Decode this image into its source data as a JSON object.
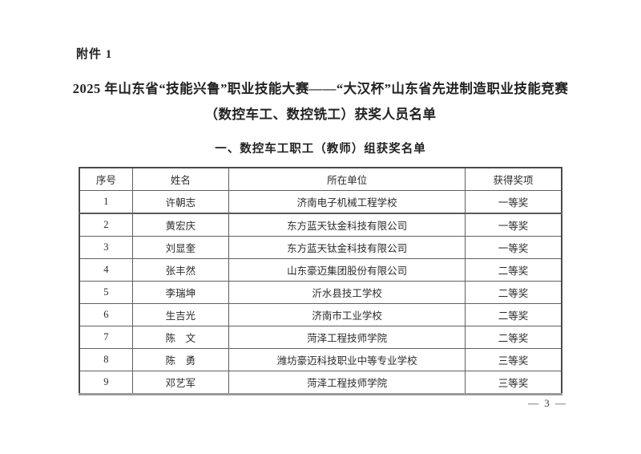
{
  "page": {
    "attachment_label": "附件 1",
    "title_line1": "2025 年山东省“技能兴鲁”职业技能大赛——“大汉杯”山东省先进制造职业技能竞赛",
    "title_line2": "（数控车工、数控铣工）获奖人员名单",
    "section_title": "一、数控车工职工（教师）组获奖名单",
    "page_number": "— 3 —"
  },
  "table": {
    "headers": [
      "序号",
      "姓名",
      "所在单位",
      "获得奖项"
    ],
    "rows": [
      [
        "1",
        "许朝志",
        "济南电子机械工程学校",
        "一等奖"
      ],
      [
        "2",
        "黄宏庆",
        "东方蓝天钛金科技有限公司",
        "一等奖"
      ],
      [
        "3",
        "刘显奎",
        "东方蓝天钛金科技有限公司",
        "一等奖"
      ],
      [
        "4",
        "张丰然",
        "山东豪迈集团股份有限公司",
        "二等奖"
      ],
      [
        "5",
        "李瑞坤",
        "沂水县技工学校",
        "二等奖"
      ],
      [
        "6",
        "生吉光",
        "济南市工业学校",
        "二等奖"
      ],
      [
        "7",
        "陈　文",
        "菏泽工程技师学院",
        "二等奖"
      ],
      [
        "8",
        "陈　勇",
        "潍坊豪迈科技职业中等专业学校",
        "三等奖"
      ],
      [
        "9",
        "邓艺军",
        "菏泽工程技师学院",
        "三等奖"
      ]
    ]
  },
  "colors": {
    "text": "#222222",
    "table_border": "#4a4a4a",
    "page_background": "#ffffff"
  }
}
